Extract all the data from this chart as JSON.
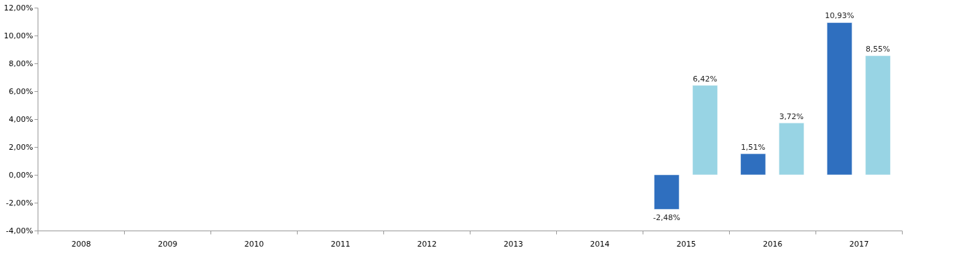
{
  "chart_data": {
    "type": "bar",
    "categories": [
      "2008",
      "2009",
      "2010",
      "2011",
      "2012",
      "2013",
      "2014",
      "2015",
      "2016",
      "2017"
    ],
    "series": [
      {
        "color": "#2f6fbf",
        "values": [
          null,
          null,
          null,
          null,
          null,
          null,
          null,
          -2.48,
          1.51,
          10.93
        ],
        "value_labels": [
          null,
          null,
          null,
          null,
          null,
          null,
          null,
          "-2,48%",
          "1,51%",
          "10,93%"
        ]
      },
      {
        "color": "#98d4e4",
        "values": [
          null,
          null,
          null,
          null,
          null,
          null,
          null,
          6.42,
          3.72,
          8.55
        ],
        "value_labels": [
          null,
          null,
          null,
          null,
          null,
          null,
          null,
          "6,42%",
          "3,72%",
          "8,55%"
        ]
      }
    ],
    "ylim": [
      -4,
      12
    ],
    "yticks": [
      {
        "value": -4,
        "label": "-4,00%"
      },
      {
        "value": -2,
        "label": "-2,00%"
      },
      {
        "value": 0,
        "label": "0,00%"
      },
      {
        "value": 2,
        "label": "2,00%"
      },
      {
        "value": 4,
        "label": "4,00%"
      },
      {
        "value": 6,
        "label": "6,00%"
      },
      {
        "value": 8,
        "label": "8,00%"
      },
      {
        "value": 10,
        "label": "10,00%"
      },
      {
        "value": 12,
        "label": "12,00%"
      }
    ],
    "grid": false
  }
}
